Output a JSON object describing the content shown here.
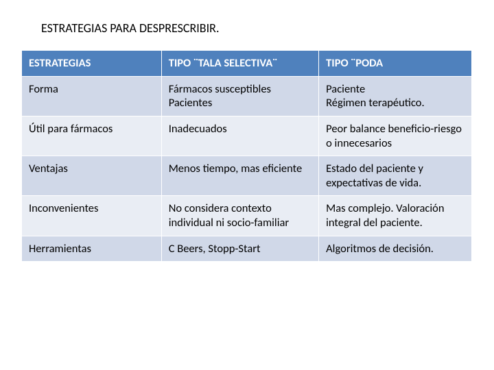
{
  "title": "ESTRATEGIAS PARA DESPRESCRIBIR.",
  "table": {
    "header_bg": "#4f81bd",
    "header_color": "#ffffff",
    "row_bg_odd": "#d0d8e8",
    "row_bg_even": "#e9edf4",
    "columns": [
      "ESTRATEGIAS",
      "TIPO ¨TALA SELECTIVA¨",
      "TIPO ¨PODA"
    ],
    "rows": [
      [
        "Forma",
        "Fármacos susceptibles Pacientes",
        "Paciente\nRégimen terapéutico."
      ],
      [
        "Útil para fármacos",
        "Inadecuados",
        "Peor balance beneficio-riesgo o innecesarios"
      ],
      [
        "Ventajas",
        "Menos tiempo, mas eficiente",
        "Estado del paciente y expectativas de vida."
      ],
      [
        "Inconvenientes",
        "No considera contexto individual ni socio-familiar",
        "Mas complejo. Valoración integral del paciente."
      ],
      [
        "Herramientas",
        "C Beers, Stopp-Start",
        "Algoritmos de decisión."
      ]
    ]
  }
}
